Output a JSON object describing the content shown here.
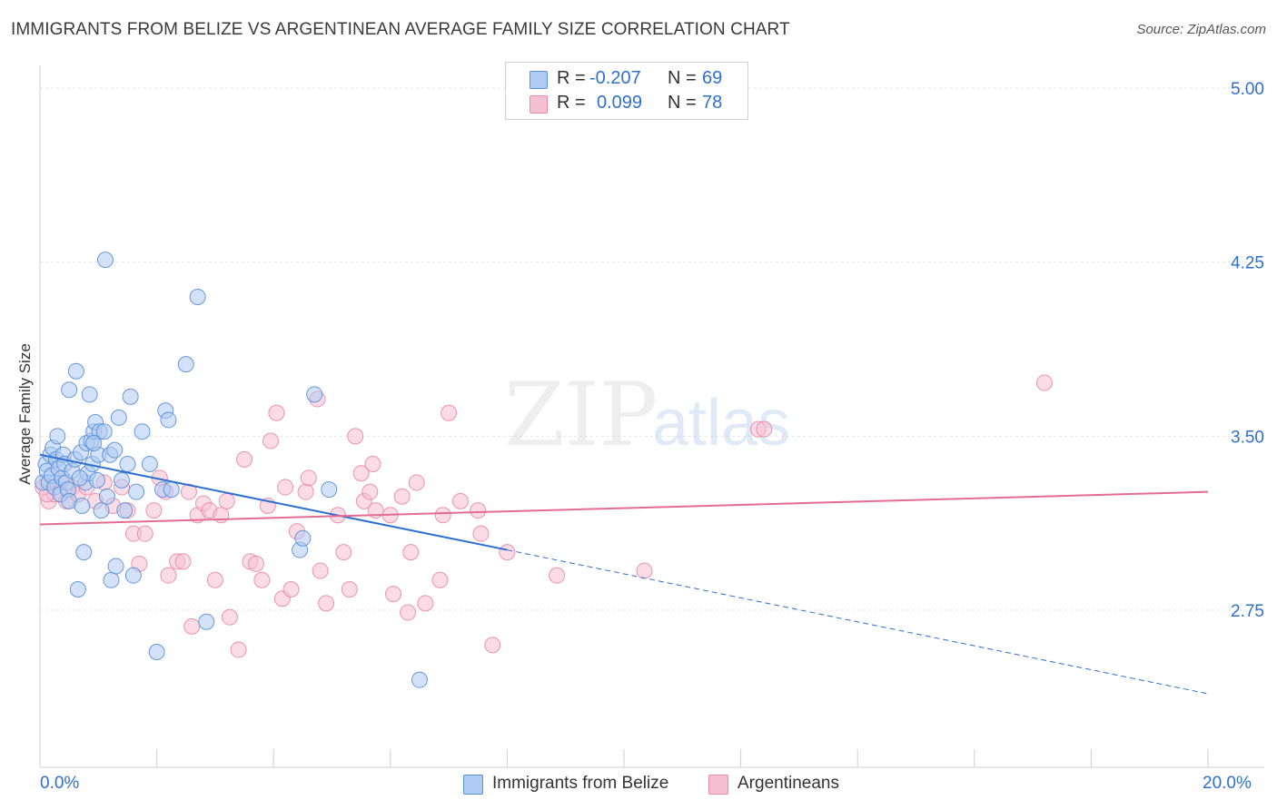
{
  "header": {
    "title": "IMMIGRANTS FROM BELIZE VS ARGENTINEAN AVERAGE FAMILY SIZE CORRELATION CHART",
    "source": "Source: ZipAtlas.com"
  },
  "watermark": {
    "zip": "ZIP",
    "atlas": "atlas"
  },
  "stats": [
    {
      "r_label": "R =",
      "r_value": "-0.207",
      "n_label": "N =",
      "n_value": "69",
      "color": "#aecbf3"
    },
    {
      "r_label": "R =",
      "r_value": "0.099",
      "n_label": "N =",
      "n_value": "78",
      "color": "#f7bfd2"
    }
  ],
  "legend": [
    {
      "label": "Immigrants from Belize",
      "color": "#aecbf3"
    },
    {
      "label": "Argentineans",
      "color": "#f7bfd2"
    }
  ],
  "colors": {
    "blue_fill": "#aecbf3",
    "blue_stroke": "#5b8fd6",
    "blue_line": "#2d6fd0",
    "pink_fill": "#f7bfd2",
    "pink_stroke": "#e88aa9",
    "pink_line": "#e46c94",
    "tick_label": "#2f6fd0",
    "grid": "#e6e6e6"
  },
  "chart_data": {
    "type": "scatter",
    "title": "IMMIGRANTS FROM BELIZE VS ARGENTINEAN AVERAGE FAMILY SIZE CORRELATION CHART",
    "xlabel": "",
    "ylabel": "Average Family Size",
    "xlim": [
      0,
      20
    ],
    "ylim": [
      2.0,
      5.1
    ],
    "x_tick_labels": [
      "0.0%",
      "20.0%"
    ],
    "y_ticks": [
      2.75,
      3.5,
      4.25,
      5.0
    ],
    "y_tick_labels": [
      "2.75",
      "3.50",
      "4.25",
      "5.00"
    ],
    "grid": true,
    "series": [
      {
        "name": "Immigrants from Belize",
        "trend": {
          "x0": 0,
          "y0": 3.42,
          "x1": 8.0,
          "y1": 3.01,
          "dashed_to_x": 20,
          "dashed_to_y": 2.39
        },
        "points": [
          [
            0.05,
            3.3
          ],
          [
            0.1,
            3.38
          ],
          [
            0.12,
            3.35
          ],
          [
            0.15,
            3.3
          ],
          [
            0.18,
            3.42
          ],
          [
            0.2,
            3.33
          ],
          [
            0.22,
            3.45
          ],
          [
            0.25,
            3.28
          ],
          [
            0.28,
            3.4
          ],
          [
            0.3,
            3.5
          ],
          [
            0.32,
            3.36
          ],
          [
            0.35,
            3.25
          ],
          [
            0.38,
            3.32
          ],
          [
            0.4,
            3.42
          ],
          [
            0.42,
            3.38
          ],
          [
            0.45,
            3.3
          ],
          [
            0.48,
            3.27
          ],
          [
            0.5,
            3.22
          ],
          [
            0.5,
            3.7
          ],
          [
            0.55,
            3.35
          ],
          [
            0.6,
            3.4
          ],
          [
            0.62,
            3.78
          ],
          [
            0.65,
            2.84
          ],
          [
            0.7,
            3.43
          ],
          [
            0.72,
            3.2
          ],
          [
            0.75,
            3.0
          ],
          [
            0.78,
            3.3
          ],
          [
            0.8,
            3.47
          ],
          [
            0.82,
            3.34
          ],
          [
            0.85,
            3.68
          ],
          [
            0.88,
            3.48
          ],
          [
            0.9,
            3.38
          ],
          [
            0.92,
            3.52
          ],
          [
            0.95,
            3.56
          ],
          [
            0.98,
            3.31
          ],
          [
            1.0,
            3.42
          ],
          [
            1.02,
            3.52
          ],
          [
            1.05,
            3.18
          ],
          [
            1.1,
            3.52
          ],
          [
            1.12,
            4.26
          ],
          [
            1.15,
            3.24
          ],
          [
            1.2,
            3.42
          ],
          [
            1.22,
            2.88
          ],
          [
            1.28,
            3.44
          ],
          [
            1.3,
            2.94
          ],
          [
            1.35,
            3.58
          ],
          [
            1.4,
            3.31
          ],
          [
            1.45,
            3.18
          ],
          [
            1.5,
            3.38
          ],
          [
            1.55,
            3.67
          ],
          [
            1.6,
            2.9
          ],
          [
            1.65,
            3.26
          ],
          [
            1.75,
            3.52
          ],
          [
            1.88,
            3.38
          ],
          [
            2.0,
            2.57
          ],
          [
            2.1,
            3.27
          ],
          [
            2.15,
            3.61
          ],
          [
            2.2,
            3.57
          ],
          [
            2.25,
            3.27
          ],
          [
            2.5,
            3.81
          ],
          [
            2.7,
            4.1
          ],
          [
            2.85,
            2.7
          ],
          [
            4.45,
            3.01
          ],
          [
            4.7,
            3.68
          ],
          [
            4.5,
            3.06
          ],
          [
            4.95,
            3.27
          ],
          [
            6.5,
            2.45
          ],
          [
            0.68,
            3.32
          ],
          [
            0.92,
            3.47
          ]
        ]
      },
      {
        "name": "Argentineans",
        "trend": {
          "x0": 0,
          "y0": 3.12,
          "x1": 20,
          "y1": 3.26
        },
        "points": [
          [
            0.05,
            3.28
          ],
          [
            0.15,
            3.22
          ],
          [
            0.25,
            3.25
          ],
          [
            0.35,
            3.3
          ],
          [
            0.45,
            3.22
          ],
          [
            0.55,
            3.28
          ],
          [
            0.65,
            3.25
          ],
          [
            0.8,
            3.28
          ],
          [
            0.95,
            3.22
          ],
          [
            1.1,
            3.3
          ],
          [
            1.25,
            3.2
          ],
          [
            1.4,
            3.28
          ],
          [
            1.5,
            3.18
          ],
          [
            1.6,
            3.08
          ],
          [
            1.7,
            2.95
          ],
          [
            1.8,
            3.08
          ],
          [
            1.95,
            3.18
          ],
          [
            2.05,
            3.32
          ],
          [
            2.15,
            3.26
          ],
          [
            2.2,
            2.9
          ],
          [
            2.35,
            2.96
          ],
          [
            2.45,
            2.96
          ],
          [
            2.55,
            3.26
          ],
          [
            2.6,
            2.68
          ],
          [
            2.7,
            3.16
          ],
          [
            2.8,
            3.21
          ],
          [
            2.9,
            3.18
          ],
          [
            3.0,
            2.88
          ],
          [
            3.1,
            3.16
          ],
          [
            3.2,
            3.22
          ],
          [
            3.25,
            2.72
          ],
          [
            3.4,
            2.58
          ],
          [
            3.5,
            3.4
          ],
          [
            3.6,
            2.96
          ],
          [
            3.7,
            2.95
          ],
          [
            3.8,
            2.88
          ],
          [
            3.9,
            3.2
          ],
          [
            3.95,
            3.48
          ],
          [
            4.05,
            3.6
          ],
          [
            4.15,
            2.8
          ],
          [
            4.2,
            3.28
          ],
          [
            4.3,
            2.84
          ],
          [
            4.4,
            3.09
          ],
          [
            4.55,
            3.26
          ],
          [
            4.6,
            3.32
          ],
          [
            4.75,
            3.66
          ],
          [
            4.8,
            2.92
          ],
          [
            4.9,
            2.78
          ],
          [
            5.1,
            3.16
          ],
          [
            5.2,
            3.0
          ],
          [
            5.3,
            2.84
          ],
          [
            5.4,
            3.5
          ],
          [
            5.5,
            3.34
          ],
          [
            5.55,
            3.22
          ],
          [
            5.65,
            3.26
          ],
          [
            5.7,
            3.38
          ],
          [
            5.75,
            3.18
          ],
          [
            6.0,
            3.16
          ],
          [
            6.05,
            2.82
          ],
          [
            6.2,
            3.24
          ],
          [
            6.3,
            2.74
          ],
          [
            6.35,
            3.0
          ],
          [
            6.45,
            3.3
          ],
          [
            6.6,
            2.78
          ],
          [
            6.85,
            2.88
          ],
          [
            6.9,
            3.16
          ],
          [
            7.0,
            3.6
          ],
          [
            7.2,
            3.22
          ],
          [
            7.5,
            3.18
          ],
          [
            7.55,
            3.08
          ],
          [
            7.75,
            2.6
          ],
          [
            8.0,
            3.0
          ],
          [
            8.85,
            2.9
          ],
          [
            10.35,
            2.92
          ],
          [
            12.3,
            3.53
          ],
          [
            12.4,
            3.53
          ],
          [
            17.2,
            3.73
          ],
          [
            0.12,
            3.25
          ]
        ]
      }
    ]
  }
}
